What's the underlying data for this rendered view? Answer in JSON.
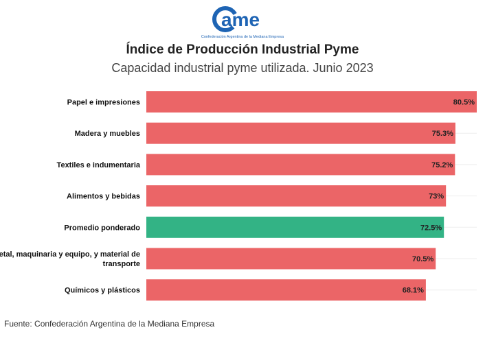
{
  "logo": {
    "text": "ame",
    "subtext": "Confederación Argentina de la Mediana Empresa",
    "color": "#1e64b4"
  },
  "header": {
    "title": "Índice de Producción Industrial Pyme",
    "subtitle": "Capacidad industrial pyme utilizada. Junio 2023"
  },
  "footer": {
    "source": "Fuente: Confederación Argentina de la Mediana Empresa"
  },
  "colors": {
    "bar_default": "#eb6567",
    "bar_highlight": "#33b385",
    "gridline": "#eeeeee"
  },
  "chart_data": {
    "type": "bar",
    "orientation": "horizontal",
    "title": "Índice de Producción Industrial Pyme",
    "subtitle": "Capacidad industrial pyme utilizada. Junio 2023",
    "categories": [
      "Papel e impresiones",
      "Madera y muebles",
      "Textiles e indumentaria",
      "Alimentos y bebidas",
      "Promedio ponderado",
      "Metal, maquinaria y equipo, y material de transporte",
      "Químicos y plásticos"
    ],
    "label_lines": [
      [
        "Papel e impresiones"
      ],
      [
        "Madera y muebles"
      ],
      [
        "Textiles e indumentaria"
      ],
      [
        "Alimentos y bebidas"
      ],
      [
        "Promedio ponderado"
      ],
      [
        "Metal, maquinaria y equipo, y material de",
        "transporte"
      ],
      [
        "Químicos y plásticos"
      ]
    ],
    "values": [
      80.5,
      75.3,
      75.2,
      73,
      72.5,
      70.5,
      68.1
    ],
    "value_labels": [
      "80.5%",
      "75.3%",
      "75.2%",
      "73%",
      "72.5%",
      "70.5%",
      "68.1%"
    ],
    "highlight_index": 4,
    "xlim": [
      0,
      80.5
    ],
    "grid": true,
    "xlabel": "",
    "ylabel": ""
  }
}
